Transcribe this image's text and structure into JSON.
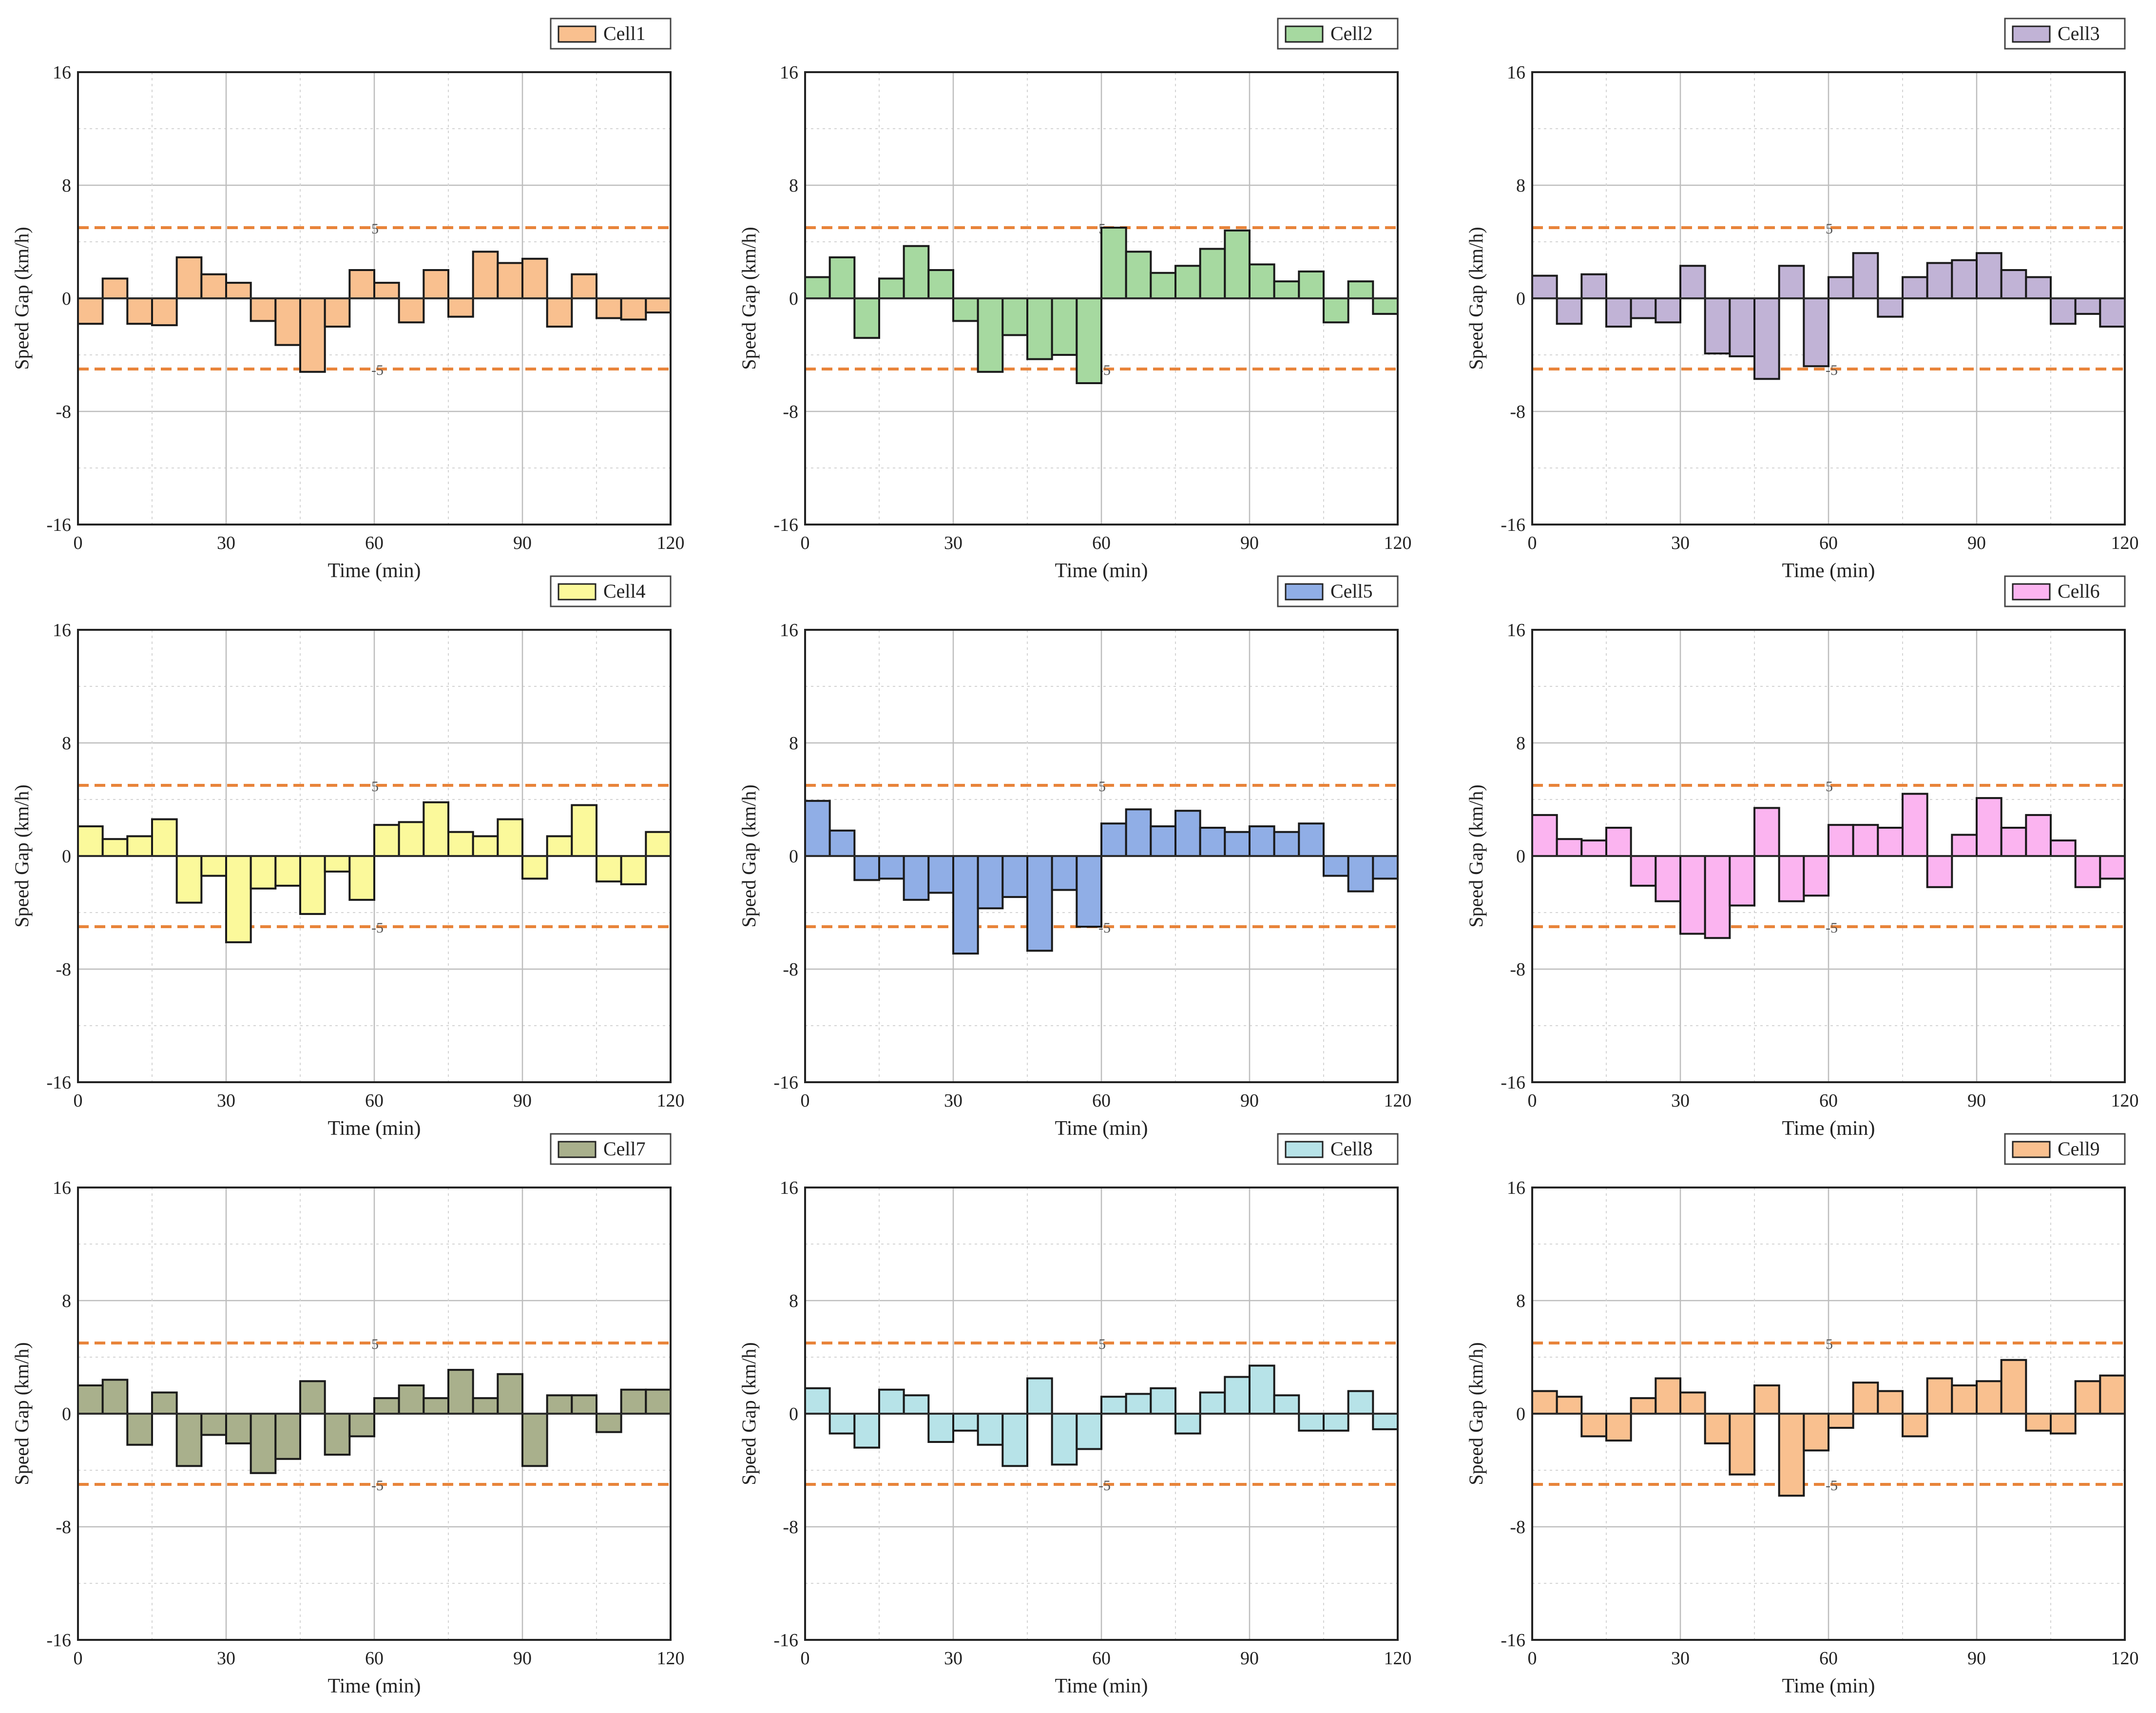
{
  "figure": {
    "threshold_label_upper": "5",
    "threshold_label_lower": "-5",
    "bar_stroke": "#1a1a1a",
    "threshold_color": "#e8843a"
  },
  "chart_data": [
    {
      "type": "bar",
      "legend": "Cell1",
      "color": "#f9c08f",
      "xlabel": "Time (min)",
      "ylabel": "Speed Gap (km/h)",
      "xlim": [
        0,
        120
      ],
      "ylim": [
        -16,
        16
      ],
      "xticks": [
        0,
        30,
        60,
        90,
        120
      ],
      "yticks": [
        -16,
        -8,
        0,
        8,
        16
      ],
      "threshold_lines": [
        5,
        -5
      ],
      "bin_width": 5,
      "x": [
        5,
        10,
        15,
        20,
        25,
        30,
        35,
        40,
        45,
        50,
        55,
        60,
        65,
        70,
        75,
        80,
        85,
        90,
        95,
        100,
        105,
        110,
        115,
        120
      ],
      "values": [
        -1.8,
        1.4,
        -1.8,
        -1.9,
        2.9,
        1.7,
        1.1,
        -1.6,
        -3.3,
        -5.2,
        -2.0,
        2.0,
        1.1,
        -1.7,
        2.0,
        -1.3,
        3.3,
        2.5,
        2.8,
        -2.0,
        1.7,
        -1.4,
        -1.5,
        -1.0
      ]
    },
    {
      "type": "bar",
      "legend": "Cell2",
      "color": "#a6d9a0",
      "xlabel": "Time (min)",
      "ylabel": "Speed Gap (km/h)",
      "xlim": [
        0,
        120
      ],
      "ylim": [
        -16,
        16
      ],
      "xticks": [
        0,
        30,
        60,
        90,
        120
      ],
      "yticks": [
        -16,
        -8,
        0,
        8,
        16
      ],
      "threshold_lines": [
        5,
        -5
      ],
      "bin_width": 5,
      "x": [
        5,
        10,
        15,
        20,
        25,
        30,
        35,
        40,
        45,
        50,
        55,
        60,
        65,
        70,
        75,
        80,
        85,
        90,
        95,
        100,
        105,
        110,
        115,
        120
      ],
      "values": [
        1.5,
        2.9,
        -2.8,
        1.4,
        3.7,
        2.0,
        -1.6,
        -5.2,
        -2.6,
        -4.3,
        -4.0,
        -6.0,
        5.0,
        3.3,
        1.8,
        2.3,
        3.5,
        4.8,
        2.4,
        1.2,
        1.9,
        -1.7,
        1.2,
        -1.1
      ]
    },
    {
      "type": "bar",
      "legend": "Cell3",
      "color": "#c1b3d6",
      "xlabel": "Time (min)",
      "ylabel": "Speed Gap (km/h)",
      "xlim": [
        0,
        120
      ],
      "ylim": [
        -16,
        16
      ],
      "xticks": [
        0,
        30,
        60,
        90,
        120
      ],
      "yticks": [
        -16,
        -8,
        0,
        8,
        16
      ],
      "threshold_lines": [
        5,
        -5
      ],
      "bin_width": 5,
      "x": [
        5,
        10,
        15,
        20,
        25,
        30,
        35,
        40,
        45,
        50,
        55,
        60,
        65,
        70,
        75,
        80,
        85,
        90,
        95,
        100,
        105,
        110,
        115,
        120
      ],
      "values": [
        1.6,
        -1.8,
        1.7,
        -2.0,
        -1.4,
        -1.7,
        2.3,
        -3.9,
        -4.1,
        -5.7,
        2.3,
        -4.8,
        1.5,
        3.2,
        -1.3,
        1.5,
        2.5,
        2.7,
        3.2,
        2.0,
        1.5,
        -1.8,
        -1.1,
        -2.0
      ]
    },
    {
      "type": "bar",
      "legend": "Cell4",
      "color": "#fbf99b",
      "xlabel": "Time (min)",
      "ylabel": "Speed Gap (km/h)",
      "xlim": [
        0,
        120
      ],
      "ylim": [
        -16,
        16
      ],
      "xticks": [
        0,
        30,
        60,
        90,
        120
      ],
      "yticks": [
        -16,
        -8,
        0,
        8,
        16
      ],
      "threshold_lines": [
        5,
        -5
      ],
      "bin_width": 5,
      "x": [
        5,
        10,
        15,
        20,
        25,
        30,
        35,
        40,
        45,
        50,
        55,
        60,
        65,
        70,
        75,
        80,
        85,
        90,
        95,
        100,
        105,
        110,
        115,
        120
      ],
      "values": [
        2.1,
        1.2,
        1.4,
        2.6,
        -3.3,
        -1.4,
        -6.1,
        -2.3,
        -2.1,
        -4.1,
        -1.1,
        -3.1,
        2.2,
        2.4,
        3.8,
        1.7,
        1.4,
        2.6,
        -1.6,
        1.4,
        3.6,
        -1.8,
        -2.0,
        1.7
      ]
    },
    {
      "type": "bar",
      "legend": "Cell5",
      "color": "#90aee6",
      "xlabel": "Time (min)",
      "ylabel": "Speed Gap (km/h)",
      "xlim": [
        0,
        120
      ],
      "ylim": [
        -16,
        16
      ],
      "xticks": [
        0,
        30,
        60,
        90,
        120
      ],
      "yticks": [
        -16,
        -8,
        0,
        8,
        16
      ],
      "threshold_lines": [
        5,
        -5
      ],
      "bin_width": 5,
      "x": [
        5,
        10,
        15,
        20,
        25,
        30,
        35,
        40,
        45,
        50,
        55,
        60,
        65,
        70,
        75,
        80,
        85,
        90,
        95,
        100,
        105,
        110,
        115,
        120
      ],
      "values": [
        3.9,
        1.8,
        -1.7,
        -1.6,
        -3.1,
        -2.6,
        -6.9,
        -3.7,
        -2.9,
        -6.7,
        -2.4,
        -5.0,
        2.3,
        3.3,
        2.1,
        3.2,
        2.0,
        1.7,
        2.1,
        1.7,
        2.3,
        -1.4,
        -2.5,
        -1.6
      ]
    },
    {
      "type": "bar",
      "legend": "Cell6",
      "color": "#fbb4f0",
      "xlabel": "Time (min)",
      "ylabel": "Speed Gap (km/h)",
      "xlim": [
        0,
        120
      ],
      "ylim": [
        -16,
        16
      ],
      "xticks": [
        0,
        30,
        60,
        90,
        120
      ],
      "yticks": [
        -16,
        -8,
        0,
        8,
        16
      ],
      "threshold_lines": [
        5,
        -5
      ],
      "bin_width": 5,
      "x": [
        5,
        10,
        15,
        20,
        25,
        30,
        35,
        40,
        45,
        50,
        55,
        60,
        65,
        70,
        75,
        80,
        85,
        90,
        95,
        100,
        105,
        110,
        115,
        120
      ],
      "values": [
        2.9,
        1.2,
        1.1,
        2.0,
        -2.1,
        -3.2,
        -5.5,
        -5.8,
        -3.5,
        3.4,
        -3.2,
        -2.8,
        2.2,
        2.2,
        2.0,
        4.4,
        -2.2,
        1.5,
        4.1,
        2.0,
        2.9,
        1.1,
        -2.2,
        -1.6
      ]
    },
    {
      "type": "bar",
      "legend": "Cell7",
      "color": "#a9b08c",
      "xlabel": "Time (min)",
      "ylabel": "Speed Gap (km/h)",
      "xlim": [
        0,
        120
      ],
      "ylim": [
        -16,
        16
      ],
      "xticks": [
        0,
        30,
        60,
        90,
        120
      ],
      "yticks": [
        -16,
        -8,
        0,
        8,
        16
      ],
      "threshold_lines": [
        5,
        -5
      ],
      "bin_width": 5,
      "x": [
        5,
        10,
        15,
        20,
        25,
        30,
        35,
        40,
        45,
        50,
        55,
        60,
        65,
        70,
        75,
        80,
        85,
        90,
        95,
        100,
        105,
        110,
        115,
        120
      ],
      "values": [
        2.0,
        2.4,
        -2.2,
        1.5,
        -3.7,
        -1.5,
        -2.1,
        -4.2,
        -3.2,
        2.3,
        -2.9,
        -1.6,
        1.1,
        2.0,
        1.1,
        3.1,
        1.1,
        2.8,
        -3.7,
        1.3,
        1.3,
        -1.3,
        1.7,
        1.7
      ]
    },
    {
      "type": "bar",
      "legend": "Cell8",
      "color": "#b7e3e8",
      "xlabel": "Time (min)",
      "ylabel": "Speed Gap (km/h)",
      "xlim": [
        0,
        120
      ],
      "ylim": [
        -16,
        16
      ],
      "xticks": [
        0,
        30,
        60,
        90,
        120
      ],
      "yticks": [
        -16,
        -8,
        0,
        8,
        16
      ],
      "threshold_lines": [
        5,
        -5
      ],
      "bin_width": 5,
      "x": [
        5,
        10,
        15,
        20,
        25,
        30,
        35,
        40,
        45,
        50,
        55,
        60,
        65,
        70,
        75,
        80,
        85,
        90,
        95,
        100,
        105,
        110,
        115,
        120
      ],
      "values": [
        1.8,
        -1.4,
        -2.4,
        1.7,
        1.3,
        -2.0,
        -1.2,
        -2.2,
        -3.7,
        2.5,
        -3.6,
        -2.5,
        1.2,
        1.4,
        1.8,
        -1.4,
        1.5,
        2.6,
        3.4,
        1.3,
        -1.2,
        -1.2,
        1.6,
        -1.1
      ]
    },
    {
      "type": "bar",
      "legend": "Cell9",
      "color": "#f9c08f",
      "xlabel": "Time (min)",
      "ylabel": "Speed Gap (km/h)",
      "xlim": [
        0,
        120
      ],
      "ylim": [
        -16,
        16
      ],
      "xticks": [
        0,
        30,
        60,
        90,
        120
      ],
      "yticks": [
        -16,
        -8,
        0,
        8,
        16
      ],
      "threshold_lines": [
        5,
        -5
      ],
      "bin_width": 5,
      "x": [
        5,
        10,
        15,
        20,
        25,
        30,
        35,
        40,
        45,
        50,
        55,
        60,
        65,
        70,
        75,
        80,
        85,
        90,
        95,
        100,
        105,
        110,
        115,
        120
      ],
      "values": [
        1.6,
        1.2,
        -1.6,
        -1.9,
        1.1,
        2.5,
        1.5,
        -2.1,
        -4.3,
        2.0,
        -5.8,
        -2.6,
        -1.0,
        2.2,
        1.6,
        -1.6,
        2.5,
        2.0,
        2.3,
        3.8,
        -1.2,
        -1.4,
        2.3,
        2.7
      ]
    }
  ]
}
